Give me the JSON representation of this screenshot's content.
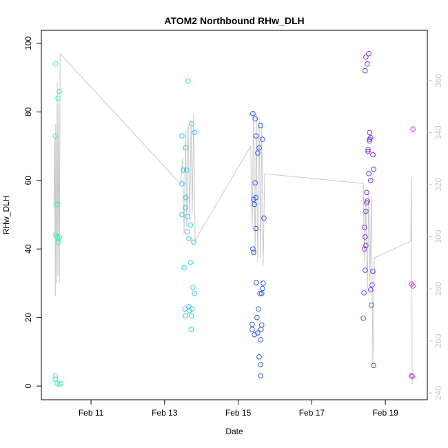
{
  "chart_data": {
    "type": "scatter",
    "title": "ATOM2 Northbound RHw_DLH",
    "x_label": "Date",
    "y_label": "RHw_DLH",
    "xlim": [
      9.65,
      20.14
    ],
    "ylim": [
      -4,
      103.8
    ],
    "y2lim": [
      237.4,
      379.3
    ],
    "xticks": [
      {
        "value": 11,
        "label": "Feb 11"
      },
      {
        "value": 13,
        "label": "Feb 13"
      },
      {
        "value": 15,
        "label": "Feb 15"
      },
      {
        "value": 17,
        "label": "Feb 17"
      },
      {
        "value": 19,
        "label": "Feb 19"
      }
    ],
    "yticks": [
      0,
      20,
      40,
      60,
      80,
      100
    ],
    "y2ticks": [
      240,
      260,
      280,
      300,
      320,
      340,
      360
    ],
    "y2_color": "#c8c8c8",
    "series": [
      {
        "type": "scatter",
        "color": "#2ef5b0",
        "x": [
          10.04,
          10.1,
          10.14,
          10.03,
          10.08,
          10.04,
          10.08,
          10.12,
          10.14,
          10.12,
          10.03,
          10.03,
          10.08,
          10.14,
          10.18
        ],
        "values": [
          94,
          84,
          86,
          73,
          53,
          44,
          43.5,
          43,
          43.5,
          42,
          3,
          2,
          0.8,
          0.5,
          0.8
        ]
      },
      {
        "type": "scatter",
        "color": "#2ec8f0",
        "x": [
          13.64,
          13.73,
          13.47,
          13.81,
          13.57,
          13.51,
          13.6,
          13.47,
          13.58,
          13.57,
          13.47,
          13.62,
          13.7,
          13.62,
          13.66,
          13.79,
          13.53,
          13.7,
          13.77,
          13.81,
          13.66,
          13.55,
          13.75,
          13.68,
          13.57,
          13.73,
          13.72
        ],
        "values": [
          89,
          76.5,
          73,
          74,
          69.5,
          63,
          63,
          59,
          55,
          52,
          50,
          49.5,
          47,
          45,
          43,
          42,
          34.5,
          36,
          28.8,
          27,
          23.2,
          22.5,
          22.5,
          22,
          20.5,
          20.5,
          16.5
        ]
      },
      {
        "type": "scatter",
        "color": "#2f55ee",
        "x": [
          15.4,
          15.46,
          15.61,
          15.49,
          15.66,
          15.57,
          15.53,
          15.46,
          15.48,
          15.42,
          15.44,
          15.7,
          15.48,
          15.4,
          15.42,
          15.49,
          15.68,
          15.66,
          15.59,
          15.64,
          15.55,
          15.51,
          15.38,
          15.64,
          15.62,
          15.38,
          15.53,
          15.44,
          15.61,
          15.57,
          15.61,
          15.61
        ],
        "values": [
          79.5,
          78,
          76,
          73,
          72,
          69.5,
          68,
          59.3,
          55,
          54.5,
          53,
          49,
          46,
          40,
          39,
          30.2,
          30,
          28.5,
          27,
          27,
          22.5,
          20,
          18,
          17.8,
          16.5,
          16.5,
          15.5,
          15,
          13.5,
          8.5,
          6.3,
          3
        ]
      },
      {
        "type": "scatter",
        "color": "#7a2ef0",
        "x": [
          18.55,
          18.47,
          18.51,
          18.45,
          18.57,
          18.6,
          18.57,
          18.57,
          18.53,
          18.53,
          18.66,
          18.68,
          18.55,
          18.6,
          18.49,
          18.51,
          18.49,
          18.47,
          18.43,
          18.45,
          18.47,
          18.43,
          18.45,
          18.66,
          18.42,
          18.64,
          18.6,
          18.62,
          18.4,
          18.68
        ],
        "values": [
          97,
          96,
          94,
          92,
          74,
          72.5,
          72,
          71.5,
          69,
          68.5,
          67.5,
          63.3,
          62,
          60,
          56.5,
          54,
          53.5,
          51,
          46.3,
          43.5,
          41,
          40,
          33.8,
          33.5,
          27.2,
          29.5,
          28.1,
          23.6,
          19.8,
          6
        ]
      },
      {
        "type": "scatter",
        "color": "#d82ef0",
        "x": [
          19.75,
          19.71,
          19.75,
          19.71,
          19.73
        ],
        "values": [
          75,
          29.8,
          29.2,
          3,
          2.8
        ]
      },
      {
        "type": "line",
        "axis": "y2",
        "color": "#c8c8c8",
        "x": [
          9.99,
          10.01,
          10.03,
          10.04,
          10.06,
          10.08,
          10.1,
          10.12,
          10.14,
          10.16,
          13.43,
          13.49,
          13.53,
          13.57,
          13.6,
          13.64,
          13.68,
          13.72,
          13.75,
          13.79,
          13.83,
          13.87,
          15.34,
          15.38,
          15.42,
          15.46,
          15.49,
          15.53,
          15.57,
          15.61,
          15.64,
          15.68,
          15.72,
          18.4,
          18.43,
          18.47,
          18.51,
          18.55,
          18.58,
          18.62,
          18.66,
          18.7,
          19.69,
          19.71,
          19.73
        ],
        "values": [
          311.5,
          338.0,
          277.1,
          343.3,
          282.4,
          359.2,
          285.0,
          351.3,
          282.4,
          370.3,
          320.3,
          330.1,
          300.9,
          340.7,
          303.6,
          343.3,
          306.2,
          344.6,
          308.9,
          347.3,
          298.3,
          299.6,
          334.8,
          303.6,
          348.6,
          293.0,
          347.3,
          290.3,
          346.0,
          291.7,
          343.3,
          289.0,
          324.2,
          320.5,
          290.3,
          314.2,
          279.7,
          316.8,
          282.4,
          315.5,
          250.6,
          291.9,
          298.3,
          322.6,
          243.4
        ]
      }
    ]
  }
}
